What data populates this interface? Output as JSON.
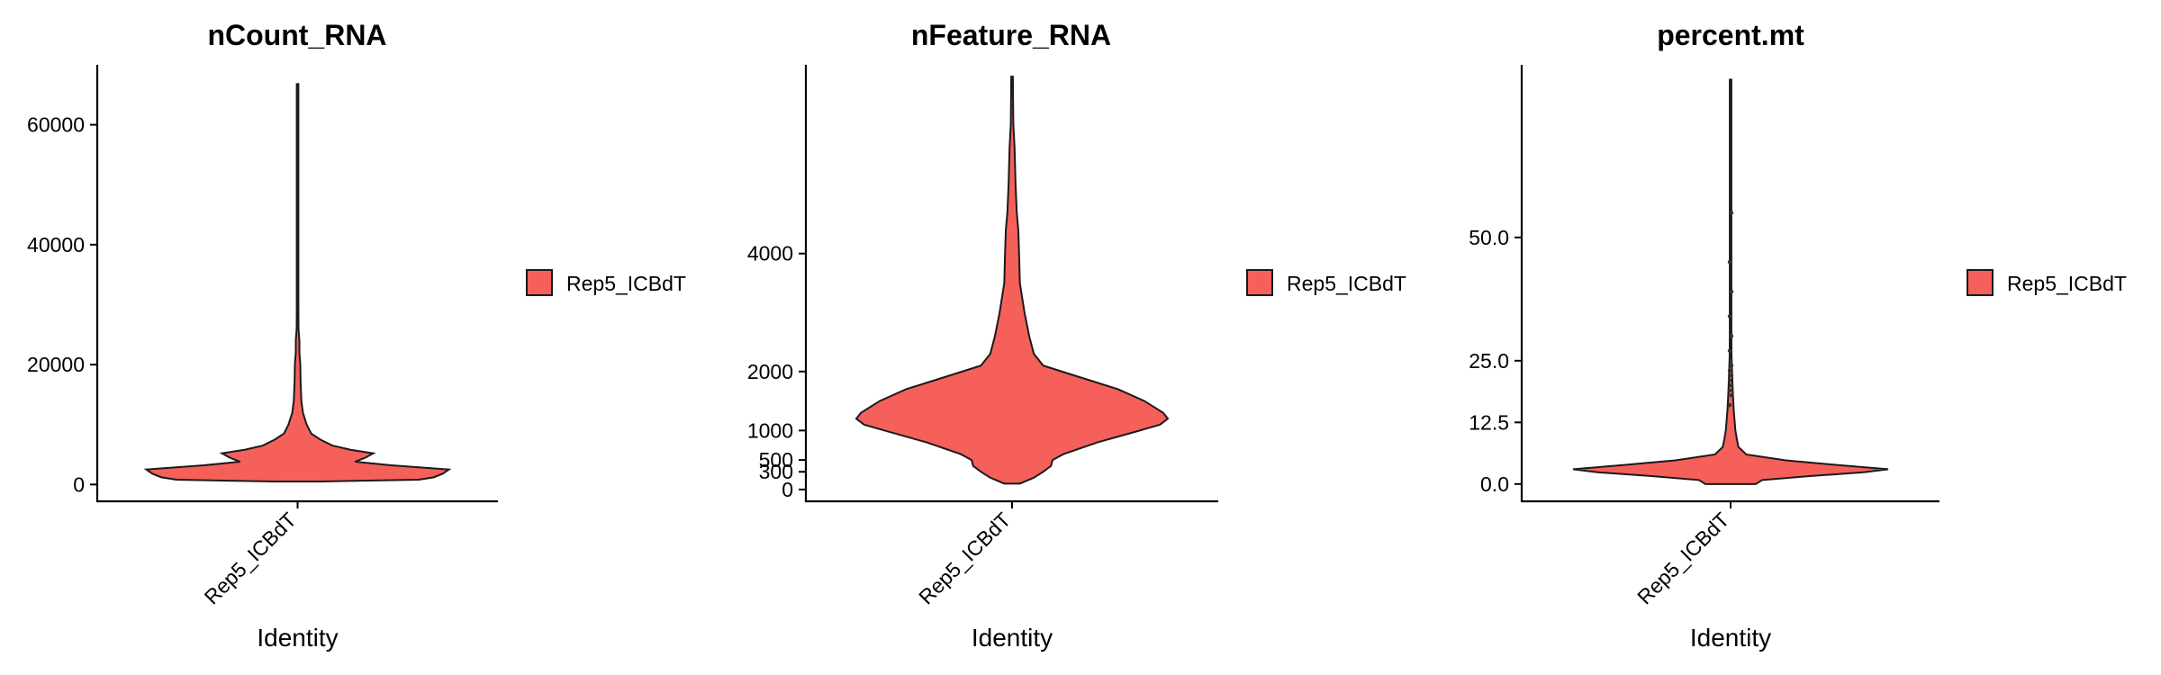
{
  "chart_data": [
    {
      "type": "violin",
      "title": "nCount_RNA",
      "xlabel": "Identity",
      "ylabel": "",
      "categories": [
        "Rep5_ICBdT"
      ],
      "ylim": [
        -2800,
        70000
      ],
      "yticks": [
        0,
        20000,
        40000,
        60000
      ],
      "ytick_labels": [
        "0",
        "20000",
        "40000",
        "60000"
      ],
      "legend": {
        "entries": [
          "Rep5_ICBdT"
        ],
        "placement": "right"
      },
      "fill_color": "#f5605b",
      "y_min": 500,
      "y_max": 66800,
      "density_profile": [
        [
          500,
          0.15
        ],
        [
          800,
          0.8
        ],
        [
          1200,
          0.9
        ],
        [
          1800,
          0.96
        ],
        [
          2500,
          1.0
        ],
        [
          3200,
          0.62
        ],
        [
          3800,
          0.38
        ],
        [
          4500,
          0.45
        ],
        [
          5200,
          0.5
        ],
        [
          5800,
          0.35
        ],
        [
          6500,
          0.23
        ],
        [
          7500,
          0.15
        ],
        [
          8500,
          0.09
        ],
        [
          10000,
          0.06
        ],
        [
          12000,
          0.035
        ],
        [
          14000,
          0.025
        ],
        [
          17000,
          0.02
        ],
        [
          20000,
          0.018
        ],
        [
          22000,
          0.012
        ],
        [
          24000,
          0.012
        ],
        [
          26000,
          0.006
        ],
        [
          30000,
          0.005
        ],
        [
          35000,
          0.004
        ],
        [
          40000,
          0.002
        ],
        [
          66800,
          0.001
        ]
      ],
      "outliers": []
    },
    {
      "type": "violin",
      "title": "nFeature_RNA",
      "xlabel": "Identity",
      "ylabel": "",
      "categories": [
        "Rep5_ICBdT"
      ],
      "ylim": [
        -200,
        7200
      ],
      "yticks": [
        0,
        300,
        500,
        1000,
        2000,
        4000
      ],
      "ytick_labels": [
        "0",
        "300",
        "500",
        "1000",
        "2000",
        "4000"
      ],
      "legend": {
        "entries": [
          "Rep5_ICBdT"
        ],
        "placement": "right"
      },
      "fill_color": "#f5605b",
      "y_min": 100,
      "y_max": 7000,
      "density_profile": [
        [
          100,
          0.05
        ],
        [
          200,
          0.14
        ],
        [
          300,
          0.2
        ],
        [
          400,
          0.25
        ],
        [
          500,
          0.26
        ],
        [
          600,
          0.33
        ],
        [
          800,
          0.55
        ],
        [
          1000,
          0.82
        ],
        [
          1100,
          0.95
        ],
        [
          1200,
          1.0
        ],
        [
          1300,
          0.97
        ],
        [
          1500,
          0.85
        ],
        [
          1700,
          0.68
        ],
        [
          1900,
          0.44
        ],
        [
          2100,
          0.2
        ],
        [
          2300,
          0.14
        ],
        [
          2600,
          0.11
        ],
        [
          3000,
          0.08
        ],
        [
          3500,
          0.05
        ],
        [
          4000,
          0.045
        ],
        [
          4400,
          0.04
        ],
        [
          4700,
          0.03
        ],
        [
          5200,
          0.022
        ],
        [
          5800,
          0.016
        ],
        [
          6200,
          0.008
        ],
        [
          7000,
          0.002
        ]
      ],
      "outliers": []
    },
    {
      "type": "violin",
      "title": "percent.mt",
      "xlabel": "Identity",
      "ylabel": "",
      "categories": [
        "Rep5_ICBdT"
      ],
      "ylim": [
        -3.5,
        85
      ],
      "yticks": [
        0,
        12.5,
        25,
        50
      ],
      "ytick_labels": [
        "0.0",
        "12.5",
        "25.0",
        "50.0"
      ],
      "legend": {
        "entries": [
          "Rep5_ICBdT"
        ],
        "placement": "right"
      },
      "fill_color": "#f5605b",
      "y_min": 0,
      "y_max": 82,
      "density_profile": [
        [
          0,
          0.16
        ],
        [
          0.8,
          0.2
        ],
        [
          1.6,
          0.5
        ],
        [
          2.4,
          0.85
        ],
        [
          3,
          1.0
        ],
        [
          3.8,
          0.7
        ],
        [
          4.8,
          0.35
        ],
        [
          6,
          0.1
        ],
        [
          7.5,
          0.05
        ],
        [
          9,
          0.04
        ],
        [
          11,
          0.03
        ],
        [
          13,
          0.025
        ],
        [
          15,
          0.02
        ],
        [
          18,
          0.015
        ],
        [
          22,
          0.01
        ],
        [
          26,
          0.006
        ],
        [
          30,
          0.004
        ],
        [
          40,
          0.003
        ],
        [
          82,
          0.001
        ]
      ],
      "outliers": [
        16,
        18,
        19,
        20,
        21,
        22,
        23,
        24,
        27,
        30,
        34,
        39,
        45,
        55
      ]
    }
  ]
}
